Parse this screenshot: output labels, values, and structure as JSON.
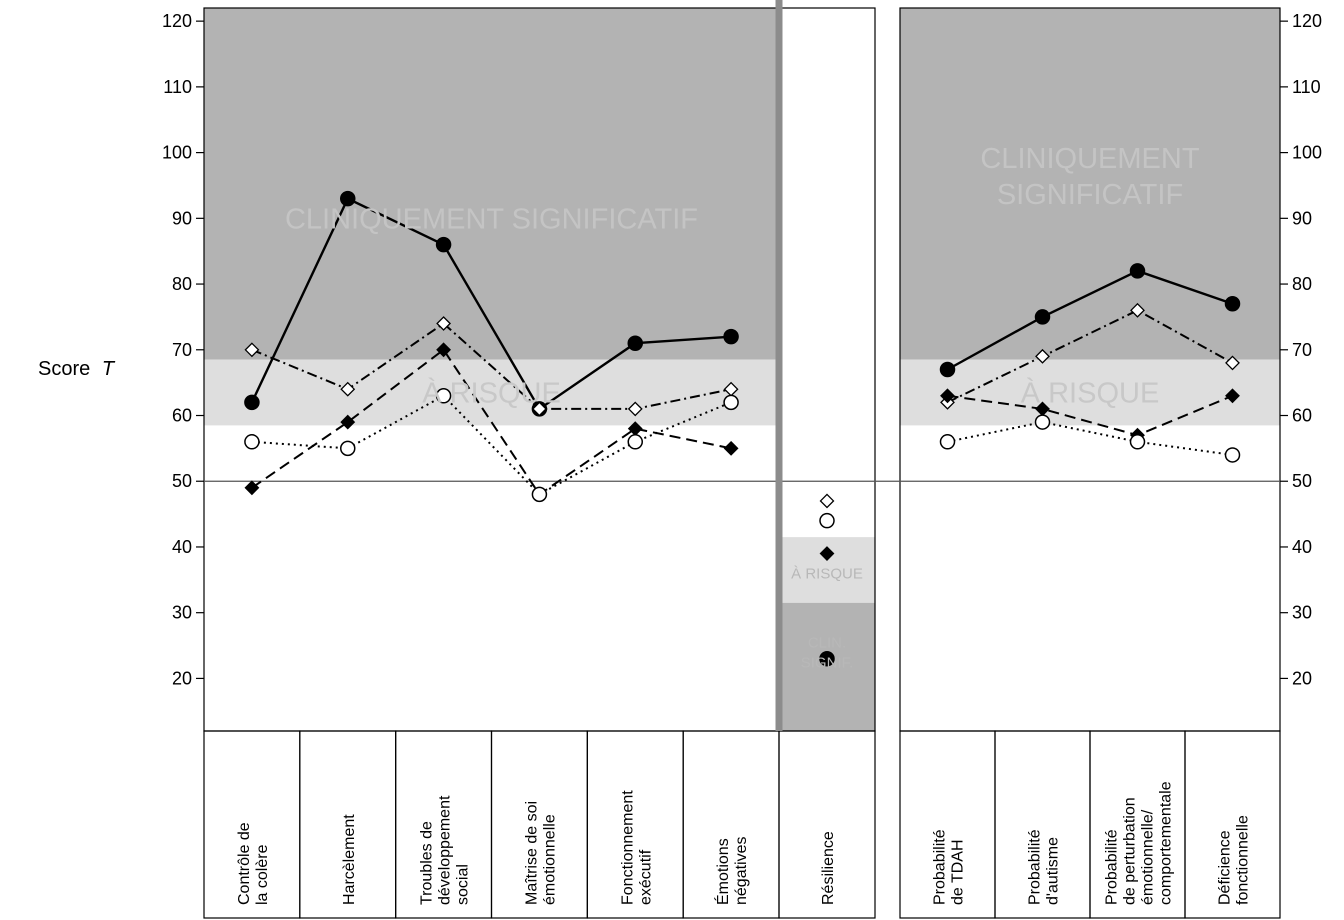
{
  "chart_data": {
    "type": "line",
    "ylabel": "Score",
    "ylabel_italic": "T",
    "yticks": [
      20,
      30,
      40,
      50,
      60,
      70,
      80,
      90,
      100,
      110,
      120
    ],
    "ylim": [
      12,
      122
    ],
    "reference_line": 50,
    "grid": false,
    "panels": [
      {
        "id": "left",
        "categories": [
          [
            "Contrôle de",
            "la colère"
          ],
          [
            "Harcèlement"
          ],
          [
            "Troubles de",
            "développement",
            "social"
          ],
          [
            "Maîtrise de soi",
            "émotionnelle"
          ],
          [
            "Fonctionnement",
            "exécutif"
          ],
          [
            "Émotions",
            "négatives"
          ]
        ],
        "bands": [
          {
            "from": 68.5,
            "to": 122,
            "color": "#b3b3b3",
            "label": [
              "CLINIQUEMENT SIGNIFICATIF"
            ],
            "label_y": 90
          },
          {
            "from": 58.5,
            "to": 68.5,
            "color": "#dedede",
            "label": [
              "À RISQUE"
            ],
            "label_y": 63.5
          }
        ],
        "series": [
          {
            "marker": "filled-circle",
            "line": "solid",
            "values": [
              62,
              93,
              86,
              61,
              71,
              72
            ]
          },
          {
            "marker": "open-diamond",
            "line": "dashdot",
            "values": [
              70,
              64,
              74,
              61,
              61,
              64
            ]
          },
          {
            "marker": "filled-diamond",
            "line": "dashed",
            "values": [
              49,
              59,
              70,
              48,
              58,
              55
            ]
          },
          {
            "marker": "open-circle",
            "line": "dotted",
            "values": [
              56,
              55,
              63,
              48,
              56,
              62
            ]
          }
        ]
      },
      {
        "id": "middle",
        "categories": [
          [
            "Résilience"
          ]
        ],
        "bands": [
          {
            "from": 31.5,
            "to": 41.5,
            "color": "#dedede",
            "label": [
              "À RISQUE"
            ],
            "label_y": 36
          },
          {
            "from": 12,
            "to": 31.5,
            "color": "#b3b3b3",
            "label": [
              "CLIN.",
              "SIGNIF."
            ],
            "label_y": 24
          }
        ],
        "series": [
          {
            "marker": "filled-circle",
            "values": [
              23
            ]
          },
          {
            "marker": "open-diamond",
            "values": [
              47
            ]
          },
          {
            "marker": "filled-diamond",
            "values": [
              39
            ]
          },
          {
            "marker": "open-circle",
            "values": [
              44
            ]
          }
        ]
      },
      {
        "id": "right",
        "categories": [
          [
            "Probabilité",
            "de TDAH"
          ],
          [
            "Probabilité",
            "d'autisme"
          ],
          [
            "Probabilité",
            "de perturbation",
            "émotionnelle/",
            "comportementale"
          ],
          [
            "Déficience",
            "fonctionnelle"
          ]
        ],
        "bands": [
          {
            "from": 68.5,
            "to": 122,
            "color": "#b3b3b3",
            "label": [
              "CLINIQUEMENT",
              "SIGNIFICATIF"
            ],
            "label_y": 96.5
          },
          {
            "from": 58.5,
            "to": 68.5,
            "color": "#dedede",
            "label": [
              "À RISQUE"
            ],
            "label_y": 63.5
          }
        ],
        "series": [
          {
            "marker": "filled-circle",
            "line": "solid",
            "values": [
              67,
              75,
              82,
              77
            ]
          },
          {
            "marker": "open-diamond",
            "line": "dashdot",
            "values": [
              62,
              69,
              76,
              68
            ]
          },
          {
            "marker": "filled-diamond",
            "line": "dashed",
            "values": [
              63,
              61,
              57,
              63
            ]
          },
          {
            "marker": "open-circle",
            "line": "dotted",
            "values": [
              56,
              59,
              56,
              54
            ]
          }
        ]
      }
    ]
  }
}
